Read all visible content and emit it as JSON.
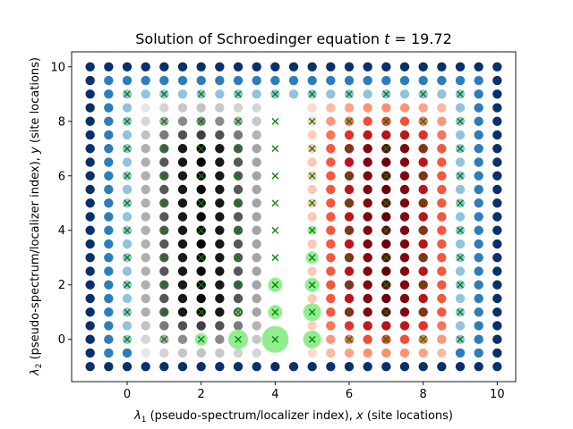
{
  "chart_data": {
    "type": "scatter",
    "title": "Solution of Schroedinger equation",
    "title_var": "t",
    "title_value": "= 19.72",
    "xlabel_symbol": "λ",
    "xlabel_sub": "1",
    "xlabel_text": " (pseudo-spectrum/localizer index), ",
    "xlabel_var": "x",
    "xlabel_tail": " (site locations)",
    "ylabel_symbol": "λ",
    "ylabel_sub": "2",
    "ylabel_text": " (pseudo-spectrum/localizer index), ",
    "ylabel_var": "y",
    "ylabel_tail": " (site locations)",
    "xlim": [
      -1.5,
      10.5
    ],
    "ylim": [
      -1.55,
      10.55
    ],
    "xticks": [
      0,
      2,
      4,
      6,
      8,
      10
    ],
    "yticks": [
      0,
      2,
      4,
      6,
      8,
      10
    ],
    "grid": false,
    "grid_points": {
      "x_min": -1,
      "x_max": 10,
      "x_step": 0.5,
      "y_min": -1,
      "y_max": 10,
      "y_step": 0.5
    },
    "grid_colormaps": {
      "boundary": "Blues",
      "left_interior": "Greys",
      "right_interior": "Reds"
    },
    "site_markers": {
      "marker": "x",
      "color": "#008000",
      "x": [
        0,
        1,
        2,
        3,
        4,
        5,
        6,
        7,
        8,
        9
      ],
      "y": [
        0,
        1,
        2,
        3,
        4,
        5,
        6,
        7,
        8,
        9
      ]
    },
    "probability_circles": {
      "color": "#90ee90",
      "points": [
        {
          "x": 2,
          "y": 0,
          "size": 7
        },
        {
          "x": 3,
          "y": 0,
          "size": 11
        },
        {
          "x": 4,
          "y": 0,
          "size": 15
        },
        {
          "x": 5,
          "y": 0,
          "size": 10
        },
        {
          "x": 4,
          "y": 1,
          "size": 8
        },
        {
          "x": 5,
          "y": 1,
          "size": 10
        },
        {
          "x": 4,
          "y": 2,
          "size": 8
        },
        {
          "x": 5,
          "y": 2,
          "size": 8
        },
        {
          "x": 5,
          "y": 3,
          "size": 7
        },
        {
          "x": 5,
          "y": 4,
          "size": 5
        },
        {
          "x": 3,
          "y": 1,
          "size": 3
        }
      ]
    }
  }
}
